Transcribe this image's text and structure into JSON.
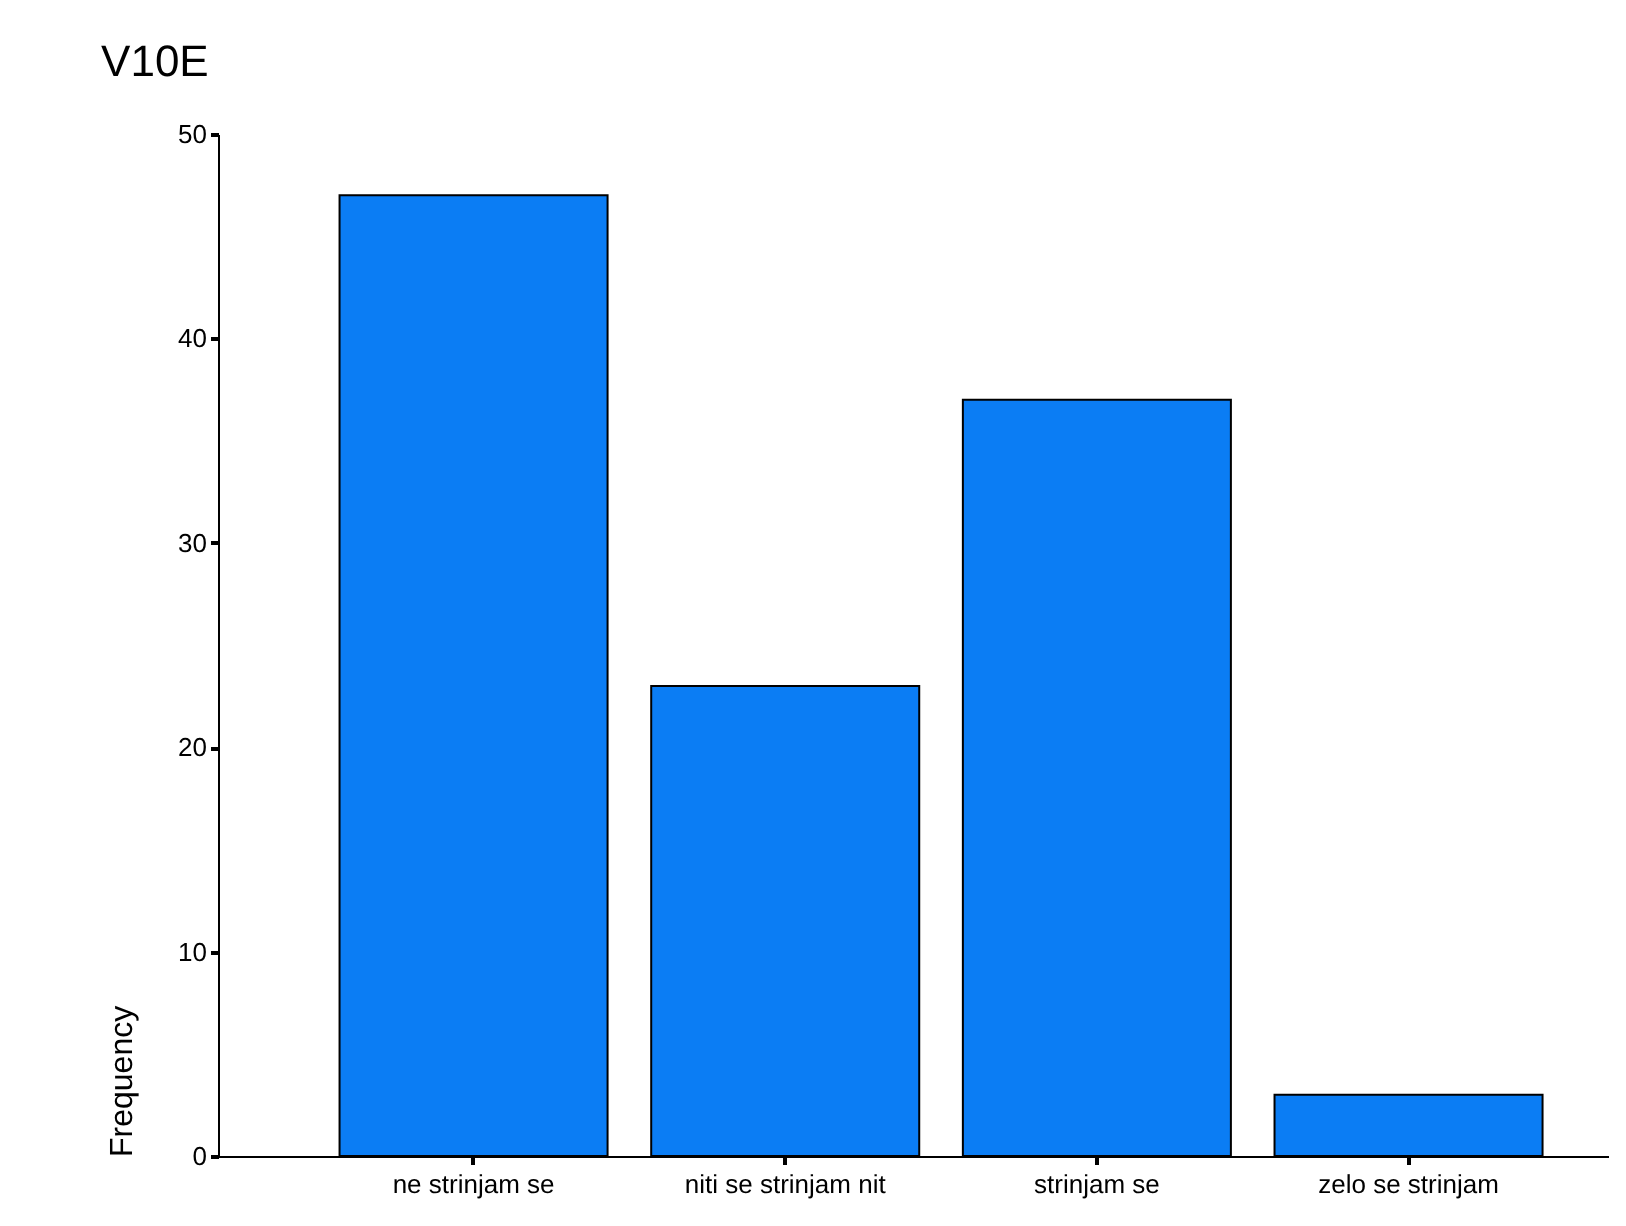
{
  "chart_data": {
    "type": "bar",
    "title": "V10E",
    "ylabel": "Frequency",
    "categories": [
      "ne strinjam se",
      "niti se strinjam nit",
      "strinjam se",
      "zelo se strinjam"
    ],
    "values": [
      47,
      23,
      37,
      3
    ],
    "color": "#0b7df4",
    "ylim": [
      0,
      50
    ],
    "yticks": [
      0,
      10,
      20,
      30,
      40,
      50
    ],
    "grid": false,
    "legend": false
  }
}
